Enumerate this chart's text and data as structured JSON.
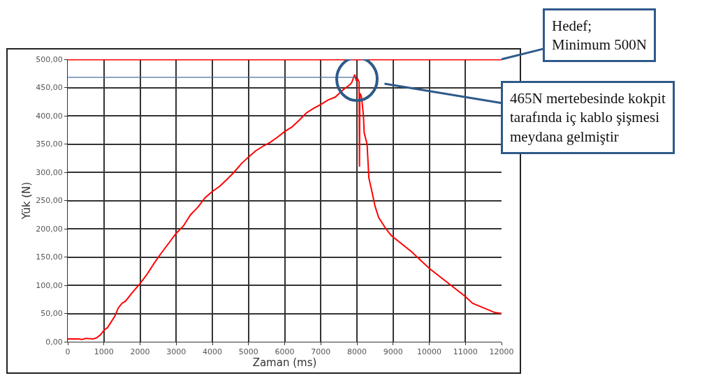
{
  "chart_data": {
    "type": "line",
    "xlabel": "Zaman (ms)",
    "ylabel": "Yük (N)",
    "xlim": [
      0,
      12000
    ],
    "xticks": [
      0,
      1000,
      2000,
      3000,
      4000,
      5000,
      6000,
      7000,
      8000,
      9000,
      10000,
      11000,
      12000
    ],
    "ylim": [
      0,
      500
    ],
    "yticks": [
      {
        "value": 0,
        "label": "0,00"
      },
      {
        "value": 50,
        "label": "50,00"
      },
      {
        "value": 100,
        "label": "100,00"
      },
      {
        "value": 150,
        "label": "150,00"
      },
      {
        "value": 200,
        "label": "200,00"
      },
      {
        "value": 250,
        "label": "250,00"
      },
      {
        "value": 300,
        "label": "300,00"
      },
      {
        "value": 350,
        "label": "350,00"
      },
      {
        "value": 400,
        "label": "400,00"
      },
      {
        "value": 450,
        "label": "450,00"
      },
      {
        "value": 500,
        "label": "500,00"
      }
    ],
    "grid": true,
    "marker": "none",
    "line_style": "solid",
    "series": [
      {
        "color": "#ff0000",
        "x": [
          0,
          300,
          400,
          500,
          700,
          800,
          900,
          1000,
          1100,
          1200,
          1300,
          1400,
          1500,
          1600,
          1800,
          2000,
          2200,
          2400,
          2600,
          2800,
          3000,
          3200,
          3400,
          3600,
          3800,
          4000,
          4200,
          4400,
          4600,
          4800,
          5000,
          5200,
          5400,
          5600,
          5800,
          6000,
          6200,
          6400,
          6600,
          6800,
          7000,
          7200,
          7400,
          7600,
          7700,
          7800,
          7850,
          7940,
          7980,
          8020,
          8060,
          8070,
          8080,
          8120,
          8150,
          8180,
          8200,
          8240,
          8280,
          8330,
          8400,
          8500,
          8600,
          8800,
          8950,
          9500,
          10000,
          10500,
          11000,
          11200,
          11500,
          11800,
          12000
        ],
        "values": [
          5,
          5,
          4,
          6,
          5,
          7,
          12,
          20,
          25,
          35,
          45,
          60,
          68,
          72,
          88,
          103,
          120,
          140,
          158,
          175,
          192,
          205,
          225,
          238,
          255,
          266,
          275,
          287,
          300,
          315,
          327,
          338,
          346,
          353,
          362,
          372,
          380,
          392,
          405,
          413,
          420,
          428,
          433,
          445,
          450,
          455,
          458,
          473,
          462,
          465,
          460,
          310,
          440,
          435,
          420,
          400,
          370,
          360,
          350,
          290,
          270,
          240,
          220,
          200,
          188,
          160,
          130,
          105,
          80,
          68,
          60,
          52,
          50
        ]
      },
      {
        "type": "line",
        "color": "#4a6fa5",
        "x": [
          0,
          7940
        ],
        "values": [
          468,
          468
        ]
      }
    ],
    "ref_lines": [
      {
        "axis": "y",
        "value": 500,
        "color": "#ff0000"
      }
    ],
    "annotations": [
      {
        "text": "Hedef;\nMinimum 500N",
        "x": 12000,
        "y": 500
      },
      {
        "text": "465N mertebesinde kokpit\ntarafında iç kablo şişmesi\nmeydana gelmiştir",
        "x": 8000,
        "y": 465
      }
    ]
  }
}
